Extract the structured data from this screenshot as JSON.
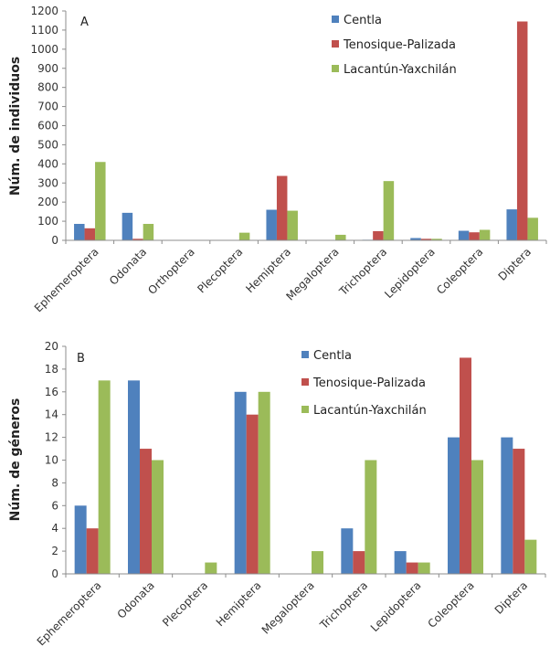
{
  "chart_data": [
    {
      "type": "bar",
      "panel": "A",
      "title": "",
      "xlabel": "",
      "ylabel": "Núm. de individuos",
      "ylim": [
        0,
        1200
      ],
      "yticks": [
        0,
        100,
        200,
        300,
        400,
        500,
        600,
        700,
        800,
        900,
        1000,
        1100,
        1200
      ],
      "grid": false,
      "legend_position": "top-right",
      "categories": [
        "Ephemeroptera",
        "Odonata",
        "Orthoptera",
        "Plecoptera",
        "Hemiptera",
        "Megaloptera",
        "Trichoptera",
        "Lepidoptera",
        "Coleoptera",
        "Diptera"
      ],
      "series": [
        {
          "name": "Centla",
          "color": "#4f81bd",
          "values": [
            86,
            144,
            0,
            0,
            160,
            0,
            3,
            12,
            50,
            162
          ]
        },
        {
          "name": "Tenosique-Palizada",
          "color": "#c0504d",
          "values": [
            63,
            8,
            0,
            0,
            337,
            0,
            48,
            8,
            42,
            1145
          ]
        },
        {
          "name": "Lacantún-Yaxchilán",
          "color": "#9bbb59",
          "values": [
            410,
            86,
            0,
            40,
            155,
            29,
            310,
            8,
            55,
            118
          ]
        }
      ]
    },
    {
      "type": "bar",
      "panel": "B",
      "title": "",
      "xlabel": "",
      "ylabel": "Núm. de géneros",
      "ylim": [
        0,
        20
      ],
      "yticks": [
        0,
        2,
        4,
        6,
        8,
        10,
        12,
        14,
        16,
        18,
        20
      ],
      "grid": false,
      "legend_position": "top-right",
      "categories": [
        "Ephemeroptera",
        "Odonata",
        "Plecoptera",
        "Hemiptera",
        "Megaloptera",
        "Trichoptera",
        "Lepidoptera",
        "Coleoptera",
        "Diptera"
      ],
      "series": [
        {
          "name": "Centla",
          "color": "#4f81bd",
          "values": [
            6,
            17,
            0,
            16,
            0,
            4,
            2,
            12,
            12
          ]
        },
        {
          "name": "Tenosique-Palizada",
          "color": "#c0504d",
          "values": [
            4,
            11,
            0,
            14,
            0,
            2,
            1,
            19,
            11
          ]
        },
        {
          "name": "Lacantún-Yaxchilán",
          "color": "#9bbb59",
          "values": [
            17,
            10,
            1,
            16,
            2,
            10,
            1,
            10,
            3
          ]
        }
      ]
    }
  ]
}
